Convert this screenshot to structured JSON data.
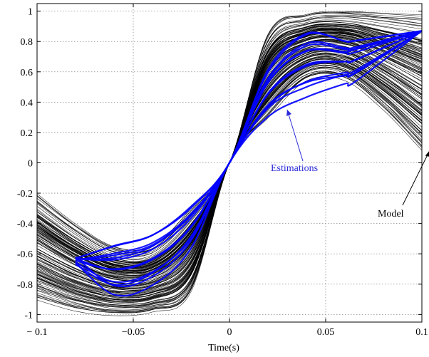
{
  "chart_data": {
    "type": "line",
    "title": "",
    "xlabel": "Time(s)",
    "ylabel": "",
    "xlim": [
      -0.1,
      0.1
    ],
    "ylim": [
      -1.05,
      1.05
    ],
    "grid": true,
    "xticks": [
      {
        "value": -0.1,
        "label": "− 0.1"
      },
      {
        "value": -0.05,
        "label": "−0.05"
      },
      {
        "value": 0,
        "label": "0"
      },
      {
        "value": 0.05,
        "label": "0.05"
      },
      {
        "value": 0.1,
        "label": "0.1"
      }
    ],
    "yticks": [
      {
        "value": 1,
        "label": "1"
      },
      {
        "value": 0.8,
        "label": "0.8"
      },
      {
        "value": 0.6,
        "label": "0.6"
      },
      {
        "value": 0.4,
        "label": "0.4"
      },
      {
        "value": 0.2,
        "label": "0.2"
      },
      {
        "value": 0,
        "label": "0"
      },
      {
        "value": -0.2,
        "label": "-0.2"
      },
      {
        "value": -0.4,
        "label": "-0.4"
      },
      {
        "value": -0.6,
        "label": "-0.6"
      },
      {
        "value": -0.8,
        "label": "-0.8"
      },
      {
        "value": -1,
        "label": "-1"
      }
    ],
    "series": [
      {
        "color": "#000000",
        "curve_count": 150,
        "x": [
          -0.1,
          -0.08,
          -0.06,
          -0.04,
          -0.02,
          0,
          0.02,
          0.04,
          0.06,
          0.08,
          0.1
        ],
        "y_range": [
          [
            -0.9,
            -0.2
          ],
          [
            -0.97,
            -0.4
          ],
          [
            -1.0,
            -0.55
          ],
          [
            -0.98,
            -0.55
          ],
          [
            -0.85,
            -0.3
          ],
          [
            0,
            0
          ],
          [
            0.3,
            0.85
          ],
          [
            0.55,
            0.98
          ],
          [
            0.55,
            1.0
          ],
          [
            0.35,
            0.99
          ],
          [
            0.08,
            0.98
          ]
        ]
      },
      {
        "color": "#0000ff",
        "curve_count": 12,
        "x": [
          -0.08,
          -0.06,
          -0.04,
          -0.02,
          0,
          0.02,
          0.04,
          0.06,
          0.065,
          0.1
        ],
        "y_range": [
          [
            -0.65,
            -0.64
          ],
          [
            -0.87,
            -0.55
          ],
          [
            -0.8,
            -0.48
          ],
          [
            -0.55,
            -0.3
          ],
          [
            0,
            0
          ],
          [
            0.3,
            0.6
          ],
          [
            0.42,
            0.85
          ],
          [
            0.52,
            0.8
          ],
          [
            0.54,
            0.8
          ],
          [
            0.87,
            0.87
          ]
        ]
      }
    ],
    "annotations": [
      {
        "text": "Estimations",
        "color": "#2a2ad8",
        "points_to": {
          "x": 0.03,
          "y": 0.35
        }
      },
      {
        "text": "Model",
        "color": "#000000",
        "points_to": {
          "x": 0.104,
          "y": 0.08
        }
      }
    ]
  }
}
